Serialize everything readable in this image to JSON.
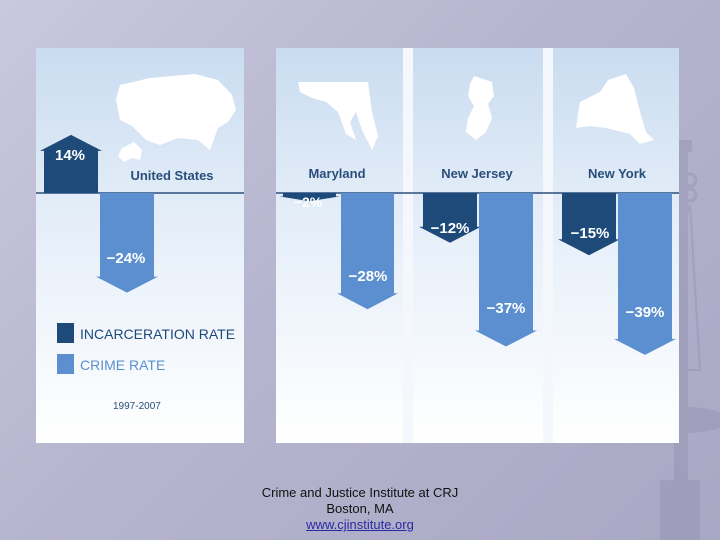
{
  "chart_data": {
    "type": "bar",
    "period_label": "1997-2007",
    "groups": [
      {
        "region": "United States",
        "incarceration_rate": 14,
        "crime_rate": -24,
        "incarceration_label": "14%",
        "crime_label": "−24%"
      },
      {
        "region": "Maryland",
        "incarceration_rate": -2,
        "crime_rate": -28,
        "incarceration_label": "−2%",
        "crime_label": "−28%"
      },
      {
        "region": "New Jersey",
        "incarceration_rate": -12,
        "crime_rate": -37,
        "incarceration_label": "−12%",
        "crime_label": "−37%"
      },
      {
        "region": "New York",
        "incarceration_rate": -15,
        "crime_rate": -39,
        "incarceration_label": "−15%",
        "crime_label": "−39%"
      }
    ],
    "legend": [
      {
        "label": "INCARCERATION RATE",
        "color": "#1e4a7a"
      },
      {
        "label": "CRIME RATE",
        "color": "#5b8fcf"
      }
    ]
  },
  "colors": {
    "incarceration": "#1e4a7a",
    "crime": "#5b8fcf",
    "map": "#ffffff",
    "axis": "#2a4e7c"
  },
  "footer": {
    "org": "Crime and Justice Institute at CRJ",
    "city": "Boston, MA",
    "url": "www.cjinstitute.org"
  }
}
